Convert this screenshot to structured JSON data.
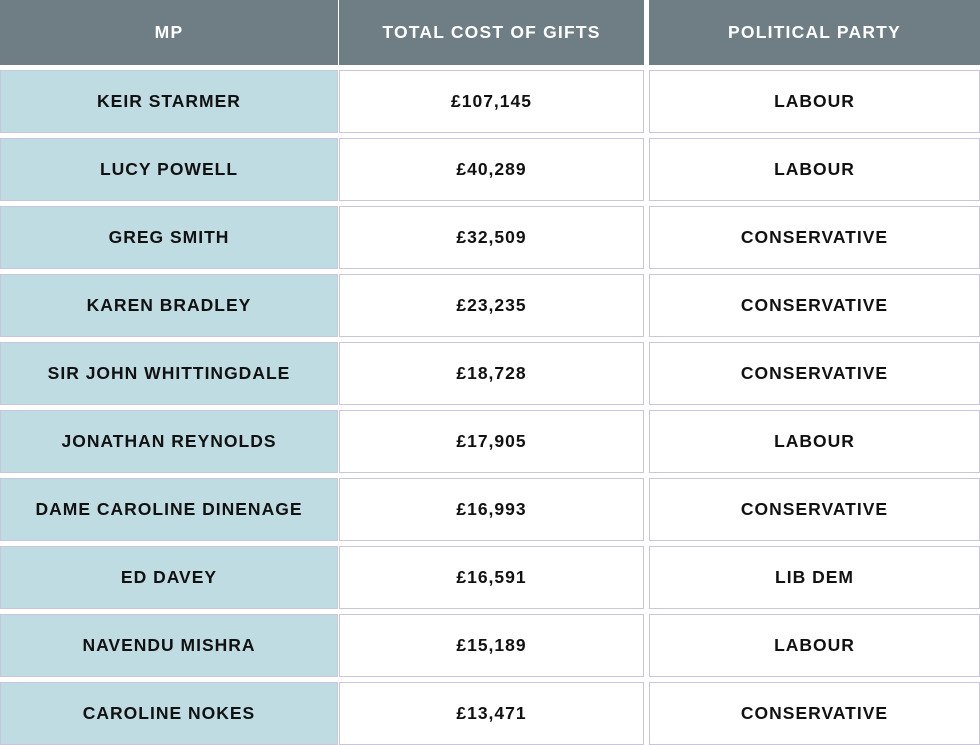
{
  "headers": [
    "MP",
    "TOTAL COST OF GIFTS",
    "POLITICAL PARTY"
  ],
  "rows": [
    {
      "mp": "KEIR STARMER",
      "cost": "£107,145",
      "party": "LABOUR"
    },
    {
      "mp": "LUCY POWELL",
      "cost": "£40,289",
      "party": "LABOUR"
    },
    {
      "mp": "GREG SMITH",
      "cost": "£32,509",
      "party": "CONSERVATIVE"
    },
    {
      "mp": "KAREN BRADLEY",
      "cost": "£23,235",
      "party": "CONSERVATIVE"
    },
    {
      "mp": "SIR JOHN WHITTINGDALE",
      "cost": "£18,728",
      "party": "CONSERVATIVE"
    },
    {
      "mp": "JONATHAN REYNOLDS",
      "cost": "£17,905",
      "party": "LABOUR"
    },
    {
      "mp": "DAME CAROLINE DINENAGE",
      "cost": "£16,993",
      "party": "CONSERVATIVE"
    },
    {
      "mp": "ED DAVEY",
      "cost": "£16,591",
      "party": "LIB DEM"
    },
    {
      "mp": "NAVENDU MISHRA",
      "cost": "£15,189",
      "party": "LABOUR"
    },
    {
      "mp": "CAROLINE NOKES",
      "cost": "£13,471",
      "party": "CONSERVATIVE"
    }
  ],
  "colors": {
    "header_bg": "#6f7e85",
    "header_text": "#ffffff",
    "mp_column_bg": "#bfdce3",
    "cell_border": "#c9c6dc",
    "body_text": "#111111"
  },
  "chart_data": {
    "type": "table",
    "columns": [
      "MP",
      "TOTAL COST OF GIFTS",
      "POLITICAL PARTY"
    ],
    "rows": [
      [
        "KEIR STARMER",
        "£107,145",
        "LABOUR"
      ],
      [
        "LUCY POWELL",
        "£40,289",
        "LABOUR"
      ],
      [
        "GREG SMITH",
        "£32,509",
        "CONSERVATIVE"
      ],
      [
        "KAREN BRADLEY",
        "£23,235",
        "CONSERVATIVE"
      ],
      [
        "SIR JOHN WHITTINGDALE",
        "£18,728",
        "CONSERVATIVE"
      ],
      [
        "JONATHAN REYNOLDS",
        "£17,905",
        "LABOUR"
      ],
      [
        "DAME CAROLINE DINENAGE",
        "£16,993",
        "CONSERVATIVE"
      ],
      [
        "ED DAVEY",
        "£16,591",
        "LIB DEM"
      ],
      [
        "NAVENDU MISHRA",
        "£15,189",
        "LABOUR"
      ],
      [
        "CAROLINE NOKES",
        "£13,471",
        "CONSERVATIVE"
      ]
    ],
    "values": [
      107145,
      40289,
      32509,
      23235,
      18728,
      17905,
      16993,
      16591,
      15189,
      13471
    ]
  }
}
